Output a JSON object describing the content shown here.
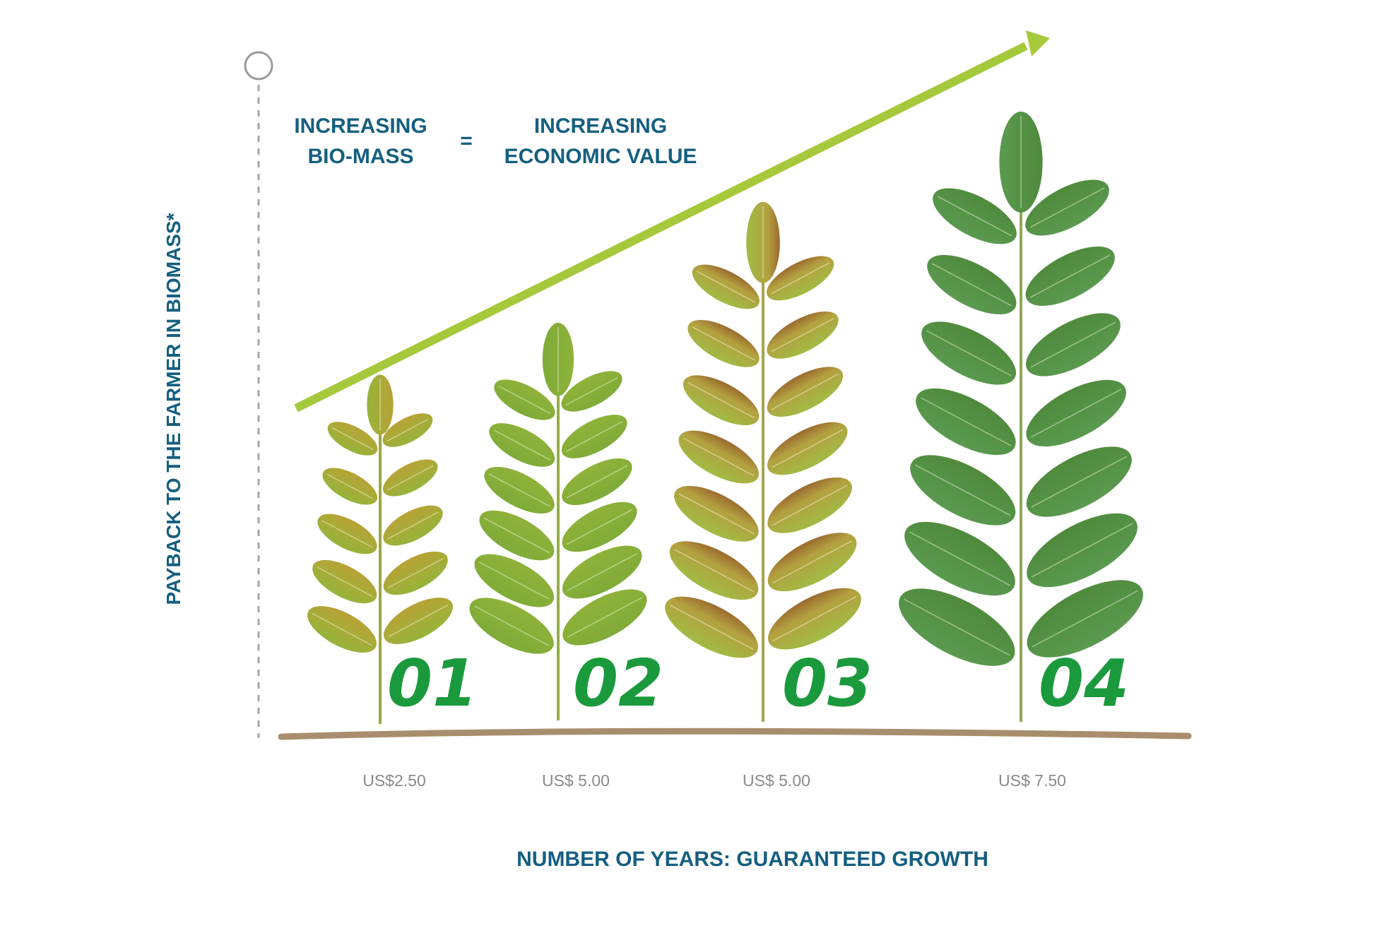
{
  "header": {
    "left": [
      "INCREASING",
      "BIO-MASS"
    ],
    "equals": "=",
    "right": [
      "INCREASING",
      "ECONOMIC VALUE"
    ]
  },
  "y_axis_label": "PAYBACK TO THE FARMER IN BIOMASS*",
  "x_axis_label": "NUMBER OF YEARS: GUARANTEED GROWTH",
  "stages": [
    {
      "number": "01",
      "price": "US$2.50",
      "leaf_pairs": 5
    },
    {
      "number": "02",
      "price": "US$ 5.00",
      "leaf_pairs": 6
    },
    {
      "number": "03",
      "price": "US$ 5.00",
      "leaf_pairs": 7
    },
    {
      "number": "04",
      "price": "US$ 7.50",
      "leaf_pairs": 7
    }
  ],
  "colors": {
    "text": "#155f80",
    "number": "#1a9a3c",
    "arrow": "#a6c93c",
    "price": "#8a8a8a",
    "branch": "#a88e6c"
  }
}
